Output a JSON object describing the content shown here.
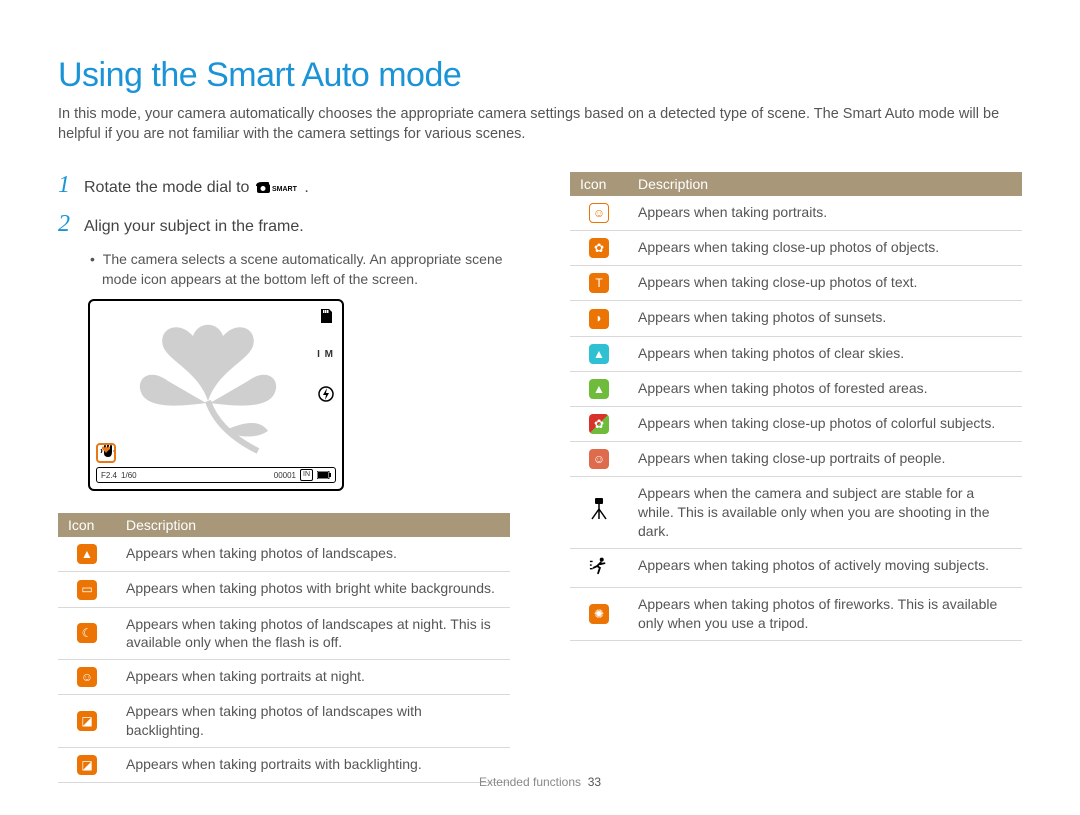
{
  "title": "Using the Smart Auto mode",
  "intro": "In this mode, your camera automatically chooses the appropriate camera settings based on a detected type of scene. The Smart Auto mode will be helpful if you are not familiar with the camera settings for various scenes.",
  "colors": {
    "title_color": "#1a94d6",
    "header_bg": "#a89879",
    "header_text": "#ffffff",
    "row_border": "#d9d9d9",
    "body_text": "#555555",
    "orange": "#ec7404",
    "cyan": "#2fc0d4",
    "green": "#6fbb3b",
    "red": "#d9322a",
    "coral": "#de6b4c",
    "black": "#000000"
  },
  "steps": [
    {
      "num": "1",
      "text_before": "Rotate the mode dial to ",
      "text_after": "."
    },
    {
      "num": "2",
      "text_before": "Align your subject in the frame.",
      "text_after": ""
    }
  ],
  "bullet": "The camera selects a scene automatically. An appropriate scene mode icon appears at the bottom left of the screen.",
  "lcd": {
    "aperture": "F2.4",
    "shutter": "1/60",
    "counter": "00001",
    "storage": "IN",
    "iso_label": "I M"
  },
  "table_headers": {
    "icon": "Icon",
    "desc": "Description"
  },
  "left_rows": [
    {
      "icon": "landscape",
      "bg": "#ec7404",
      "glyph": "▲",
      "desc": "Appears when taking photos of landscapes."
    },
    {
      "icon": "white-bg",
      "bg": "#ec7404",
      "glyph": "▭",
      "desc": "Appears when taking photos with bright white backgrounds."
    },
    {
      "icon": "night-landscape",
      "bg": "#ec7404",
      "glyph": "☾",
      "desc": "Appears when taking photos of landscapes at night. This is available only when the flash is off."
    },
    {
      "icon": "night-portrait",
      "bg": "#ec7404",
      "glyph": "☺",
      "desc": "Appears when taking portraits at night."
    },
    {
      "icon": "backlight-landscape",
      "bg": "#ec7404",
      "glyph": "◪",
      "desc": "Appears when taking photos of landscapes with backlighting."
    },
    {
      "icon": "backlight-portrait",
      "bg": "#ec7404",
      "glyph": "◪",
      "desc": "Appears when taking portraits with backlighting."
    }
  ],
  "right_rows": [
    {
      "icon": "portrait",
      "bg": "#ffffff",
      "outline": "#ec7404",
      "glyph": "☺",
      "glyph_color": "#ec7404",
      "desc": "Appears when taking portraits."
    },
    {
      "icon": "macro-object",
      "bg": "#ec7404",
      "glyph": "✿",
      "desc": "Appears when taking close-up photos of objects."
    },
    {
      "icon": "macro-text",
      "bg": "#ec7404",
      "glyph": "T",
      "desc": "Appears when taking close-up photos of text."
    },
    {
      "icon": "sunset",
      "bg": "#ec7404",
      "glyph": "◗",
      "desc": "Appears when taking photos of sunsets."
    },
    {
      "icon": "sky",
      "bg": "#2fc0d4",
      "glyph": "▲",
      "desc": "Appears when taking photos of clear skies."
    },
    {
      "icon": "forest",
      "bg": "#6fbb3b",
      "glyph": "▲",
      "desc": "Appears when taking photos of forested areas."
    },
    {
      "icon": "macro-color",
      "bg_half": [
        "#d9322a",
        "#6fbb3b"
      ],
      "glyph": "✿",
      "desc": "Appears when taking close-up photos of colorful subjects."
    },
    {
      "icon": "macro-portrait",
      "bg": "#de6b4c",
      "glyph": "☺",
      "desc": "Appears when taking close-up portraits of people."
    },
    {
      "icon": "tripod",
      "bg": "transparent",
      "glyph_svg": "tripod",
      "glyph_color": "#000000",
      "desc": "Appears when the camera and subject are stable for a while. This is available only when you are shooting in the dark."
    },
    {
      "icon": "action",
      "bg": "transparent",
      "glyph_svg": "runner",
      "glyph_color": "#000000",
      "desc": "Appears when taking photos of actively moving subjects."
    },
    {
      "icon": "fireworks",
      "bg": "#ec7404",
      "glyph": "✺",
      "desc": "Appears when taking photos of fireworks. This is available only when you use a tripod."
    }
  ],
  "footer": {
    "section": "Extended functions",
    "page": "33"
  }
}
